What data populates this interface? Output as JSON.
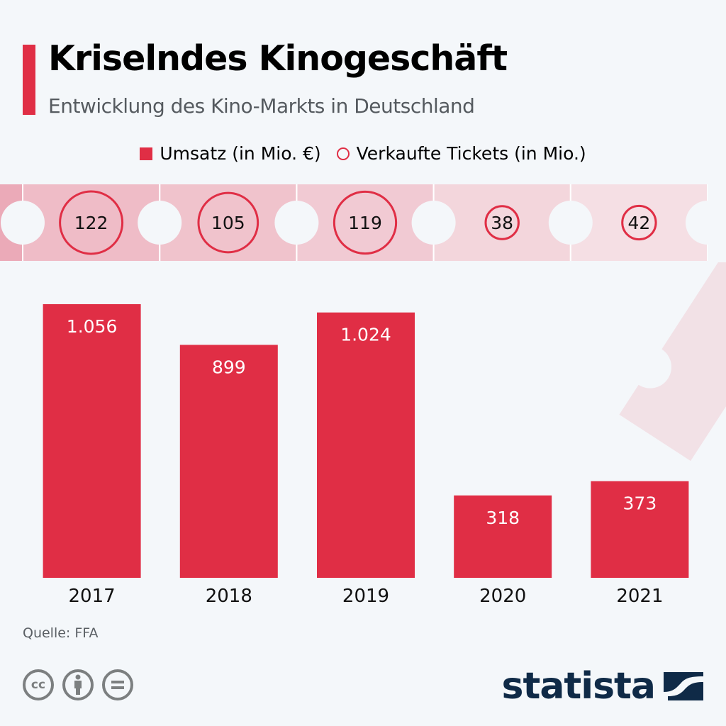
{
  "header": {
    "title": "Kriselndes Kinogeschäft",
    "subtitle": "Entwicklung des Kino-Markts in Deutschland"
  },
  "colors": {
    "accent": "#e02e45",
    "background": "#f4f7fa",
    "brand_navy": "#0f2a47",
    "icon_gray": "#7c7f80"
  },
  "chart_data": {
    "type": "bar",
    "title": "Kriselndes Kinogeschäft",
    "subtitle": "Entwicklung des Kino-Markts in Deutschland",
    "categories": [
      "2017",
      "2018",
      "2019",
      "2020",
      "2021"
    ],
    "series": [
      {
        "name": "Umsatz (in Mio. €)",
        "marker": "square",
        "values": [
          1056,
          899,
          1024,
          318,
          373
        ],
        "labels": [
          "1.056",
          "899",
          "1.024",
          "318",
          "373"
        ]
      },
      {
        "name": "Verkaufte Tickets (in Mio.)",
        "marker": "circle",
        "values": [
          122,
          105,
          119,
          38,
          42
        ],
        "labels": [
          "122",
          "105",
          "119",
          "38",
          "42"
        ]
      }
    ],
    "xlabel": "",
    "ylabel": "",
    "ylim": [
      0,
      1100
    ],
    "grid": false,
    "legend": "top-center",
    "source": "Quelle: FFA"
  },
  "legend": {
    "items": [
      "Umsatz (in Mio. €)",
      "Verkaufte Tickets (in Mio.)"
    ]
  },
  "footer": {
    "source": "Quelle: FFA",
    "license_icons": [
      "cc-icon",
      "attribution-icon",
      "no-derivatives-icon"
    ],
    "logo_text": "statista"
  }
}
